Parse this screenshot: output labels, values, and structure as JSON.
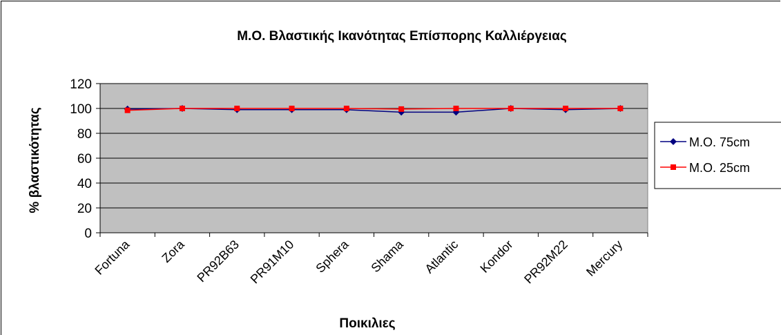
{
  "chart_data": {
    "type": "line",
    "title": "Μ.Ο. Βλαστικής Ικανότητας Επίσπορης Καλλιέργειας",
    "xlabel": "Ποικιλιες",
    "ylabel": "% βλαστικότητας",
    "ylim": [
      0,
      120
    ],
    "yticks": [
      "0",
      "20",
      "40",
      "60",
      "80",
      "100",
      "120"
    ],
    "grid": true,
    "legend_position": "right",
    "categories": [
      "Fortuna",
      "Zora",
      "PR92B63",
      "PR91M10",
      "Sphera",
      "Shama",
      "Atlantic",
      "Kondor",
      "PR92M22",
      "Mercury"
    ],
    "series": [
      {
        "name": "Μ.Ο. 75cm",
        "color": "#000080",
        "marker": "diamond",
        "values": [
          99.5,
          100,
          99,
          99,
          99,
          97,
          97,
          100,
          99,
          100
        ]
      },
      {
        "name": "Μ.Ο. 25cm",
        "color": "#ff0000",
        "marker": "square",
        "values": [
          98.5,
          100,
          100,
          100,
          100,
          99.5,
          100,
          100,
          100,
          100
        ]
      }
    ],
    "plot_background": "#c0c0c0"
  }
}
